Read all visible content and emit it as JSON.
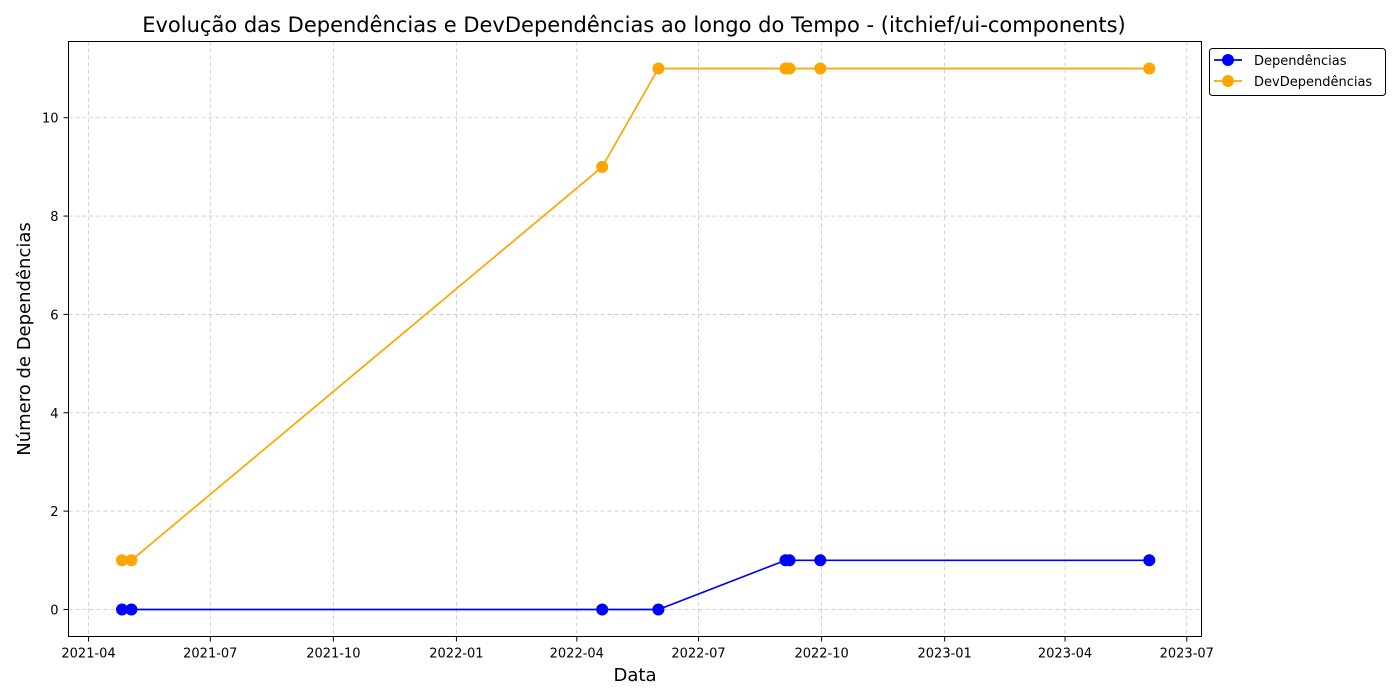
{
  "chart_data": {
    "type": "line",
    "title": "Evolução das Dependências e DevDependências ao longo do Tempo - (itchief/ui-components)",
    "xlabel": "Data",
    "ylabel": "Número de Dependências",
    "x_ticks": [
      "2021-04",
      "2021-07",
      "2021-10",
      "2022-01",
      "2022-04",
      "2022-07",
      "2022-10",
      "2023-01",
      "2023-04",
      "2023-07"
    ],
    "y_ticks": [
      0,
      2,
      4,
      6,
      8,
      10
    ],
    "xlim": [
      "2021-03-17",
      "2023-07-12"
    ],
    "ylim": [
      -0.55,
      11.55
    ],
    "grid": true,
    "legend_position": "outside-top-right",
    "x": [
      "2021-04-26",
      "2021-05-03",
      "2022-04-20",
      "2022-06-01",
      "2022-09-04",
      "2022-09-07",
      "2022-09-30",
      "2023-06-03"
    ],
    "series": [
      {
        "name": "Dependências",
        "color": "#0000ff",
        "marker": "circle",
        "values": [
          0,
          0,
          0,
          0,
          1,
          1,
          1,
          1
        ]
      },
      {
        "name": "DevDependências",
        "color": "#ffa500",
        "marker": "circle",
        "values": [
          1,
          1,
          9,
          11,
          11,
          11,
          11,
          11
        ]
      }
    ]
  }
}
